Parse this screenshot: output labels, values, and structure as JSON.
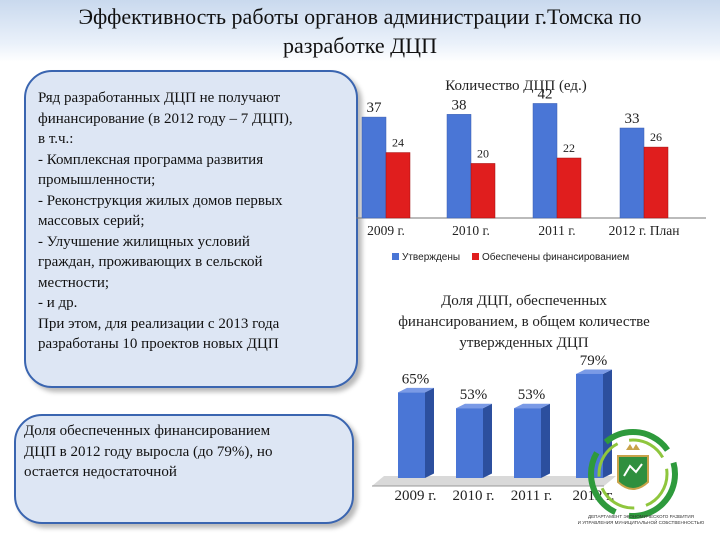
{
  "slide": {
    "title_line1": "Эффективность работы органов администрации г.Томска по",
    "title_line2": "разработке ДЦП"
  },
  "text_box_1": {
    "lines": [
      "Ряд разработанных ДЦП не получают",
      "финансирование (в 2012 году – 7 ДЦП),",
      "в т.ч.:",
      "- Комплексная программа развития",
      "промышленности;",
      "- Реконструкция жилых домов первых",
      "массовых серий;",
      "- Улучшение жилищных условий",
      "граждан, проживающих в сельской",
      "местности;",
      "- и др.",
      "При этом, для реализации с 2013 года",
      "разработаны 10 проектов новых ДЦП"
    ]
  },
  "text_box_2": {
    "lines": [
      "Доля обеспеченных финансированием",
      "ДЦП в 2012 году выросла (до 79%), но",
      "остается недостаточной"
    ]
  },
  "logo": {
    "caption_line1": "ДЕПАРТАМЕНТ ЭКОНОМИЧЕСКОГО РАЗВИТИЯ",
    "caption_line2": "И УПРАВЛЕНИЯ МУНИЦИПАЛЬНОЙ СОБСТВЕННОСТЬЮ"
  },
  "colors": {
    "approved": "#4a76d6",
    "financed": "#e01e1e",
    "box_fill": "#dde6f4",
    "box_border": "#3a65b0"
  },
  "chart_data": [
    {
      "type": "bar",
      "title": "Количество ДЦП (ед.)",
      "categories": [
        "2009 г.",
        "2010 г.",
        "2011 г.",
        "2012 г. План"
      ],
      "series": [
        {
          "name": "Утверждены",
          "values": [
            37,
            38,
            42,
            33
          ]
        },
        {
          "name": "Обеспечены финансированием",
          "values": [
            24,
            20,
            22,
            26
          ]
        }
      ],
      "data_labels": {
        "approved": [
          "37",
          "38",
          "42",
          "33"
        ],
        "financed": [
          "24",
          "20",
          "22",
          "26"
        ]
      },
      "ylim": [
        0,
        44
      ],
      "grid": false,
      "legend_position": "bottom"
    },
    {
      "type": "bar",
      "title_lines": [
        "Доля ДЦП, обеспеченных",
        "финансированием, в общем количестве",
        "утвержденных ДЦП"
      ],
      "categories": [
        "2009 г.",
        "2010 г.",
        "2011 г.",
        "2012 г."
      ],
      "values": [
        65,
        53,
        53,
        79
      ],
      "data_labels": [
        "65%",
        "53%",
        "53%",
        "79%"
      ],
      "ylim": [
        0,
        82
      ],
      "grid": false
    }
  ]
}
